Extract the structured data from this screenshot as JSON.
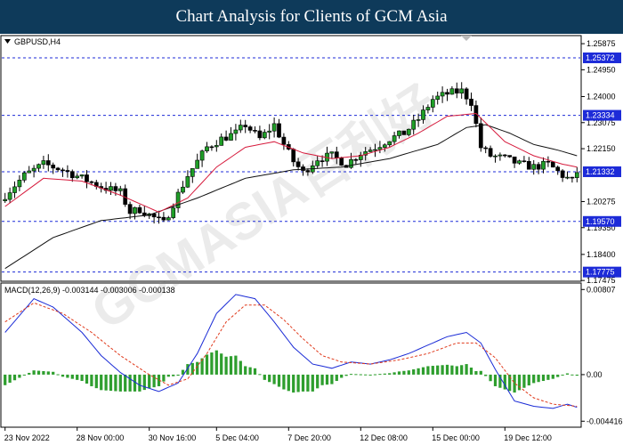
{
  "banner": {
    "title": "Chart Analysis for Clients of GCM Asia"
  },
  "watermark": "GCMASIA百利好",
  "chart_data": {
    "type": "candlestick",
    "symbol": "GBPUSD,H4",
    "x_tick_labels": [
      "23 Nov 2022",
      "28 Nov 00:00",
      "30 Nov 16:00",
      "5 Dec 04:00",
      "7 Dec 20:00",
      "12 Dec 08:00",
      "15 Dec 00:00",
      "19 Dec 12:00"
    ],
    "price_axis": {
      "ylim": [
        1.1748,
        1.2613
      ],
      "ticks": [
        1.25875,
        1.2495,
        1.24,
        1.23075,
        1.2215,
        1.20275,
        1.1935,
        1.184,
        1.17475
      ],
      "tick_labels": [
        "1.25875",
        "1.24950",
        "1.24000",
        "1.23075",
        "1.22150",
        "1.20275",
        "1.19350",
        "1.18400",
        "1.17475"
      ]
    },
    "levels": [
      {
        "value": 1.25372,
        "label": "1.25372"
      },
      {
        "value": 1.23334,
        "label": "1.23334"
      },
      {
        "value": 1.21332,
        "label": "1.21332"
      },
      {
        "value": 1.1957,
        "label": "1.19570"
      },
      {
        "value": 1.17775,
        "label": "1.17775"
      }
    ],
    "close_path": [
      [
        0,
        1.205
      ],
      [
        4,
        1.212
      ],
      [
        8,
        1.216
      ],
      [
        12,
        1.214
      ],
      [
        16,
        1.211
      ],
      [
        20,
        1.208
      ],
      [
        24,
        1.206
      ],
      [
        26,
        1.199
      ],
      [
        28,
        1.2
      ],
      [
        30,
        1.198
      ],
      [
        33,
        1.195
      ],
      [
        35,
        1.202
      ],
      [
        38,
        1.212
      ],
      [
        42,
        1.222
      ],
      [
        45,
        1.225
      ],
      [
        48,
        1.227
      ],
      [
        50,
        1.23
      ],
      [
        53,
        1.225
      ],
      [
        56,
        1.23
      ],
      [
        58,
        1.223
      ],
      [
        60,
        1.217
      ],
      [
        62,
        1.213
      ],
      [
        65,
        1.218
      ],
      [
        68,
        1.219
      ],
      [
        71,
        1.216
      ],
      [
        74,
        1.22
      ],
      [
        77,
        1.222
      ],
      [
        80,
        1.225
      ],
      [
        83,
        1.227
      ],
      [
        86,
        1.232
      ],
      [
        89,
        1.239
      ],
      [
        92,
        1.241
      ],
      [
        95,
        1.242
      ],
      [
        97,
        1.238
      ],
      [
        99,
        1.222
      ],
      [
        101,
        1.219
      ],
      [
        104,
        1.218
      ],
      [
        107,
        1.216
      ],
      [
        110,
        1.215
      ],
      [
        113,
        1.216
      ],
      [
        116,
        1.212
      ],
      [
        118,
        1.21
      ],
      [
        119,
        1.2133
      ]
    ],
    "ma_fast": [
      [
        0,
        1.201
      ],
      [
        8,
        1.211
      ],
      [
        16,
        1.21
      ],
      [
        24,
        1.205
      ],
      [
        32,
        1.199
      ],
      [
        38,
        1.204
      ],
      [
        44,
        1.215
      ],
      [
        50,
        1.222
      ],
      [
        56,
        1.224
      ],
      [
        62,
        1.22
      ],
      [
        68,
        1.218
      ],
      [
        74,
        1.219
      ],
      [
        80,
        1.222
      ],
      [
        86,
        1.227
      ],
      [
        92,
        1.233
      ],
      [
        98,
        1.234
      ],
      [
        104,
        1.224
      ],
      [
        110,
        1.219
      ],
      [
        116,
        1.216
      ],
      [
        119,
        1.215
      ]
    ],
    "ma_slow": [
      [
        0,
        1.179
      ],
      [
        10,
        1.19
      ],
      [
        20,
        1.196
      ],
      [
        30,
        1.198
      ],
      [
        40,
        1.204
      ],
      [
        50,
        1.211
      ],
      [
        60,
        1.214
      ],
      [
        70,
        1.215
      ],
      [
        80,
        1.218
      ],
      [
        90,
        1.223
      ],
      [
        96,
        1.229
      ],
      [
        100,
        1.23
      ],
      [
        105,
        1.227
      ],
      [
        110,
        1.223
      ],
      [
        115,
        1.221
      ],
      [
        119,
        1.219
      ]
    ],
    "macd": {
      "label": "MACD(12,26,9) -0.003144 -0.003006 -0.000138",
      "ylim": [
        -0.0049,
        0.0086
      ],
      "ticks": [
        0.00807,
        0.0,
        -0.004416
      ],
      "tick_labels": [
        "0.00807",
        "0.00",
        "-0.004416"
      ],
      "macd_line": [
        [
          0,
          0.004
        ],
        [
          6,
          0.0072
        ],
        [
          10,
          0.0064
        ],
        [
          16,
          0.004
        ],
        [
          20,
          0.0018
        ],
        [
          24,
          0.0002
        ],
        [
          28,
          -0.001
        ],
        [
          32,
          -0.0016
        ],
        [
          36,
          -0.0008
        ],
        [
          40,
          0.002
        ],
        [
          44,
          0.0058
        ],
        [
          48,
          0.0076
        ],
        [
          52,
          0.0072
        ],
        [
          56,
          0.005
        ],
        [
          60,
          0.0026
        ],
        [
          64,
          0.001
        ],
        [
          68,
          0.0006
        ],
        [
          72,
          0.0012
        ],
        [
          76,
          0.001
        ],
        [
          80,
          0.0014
        ],
        [
          84,
          0.002
        ],
        [
          88,
          0.0028
        ],
        [
          92,
          0.0036
        ],
        [
          96,
          0.004
        ],
        [
          99,
          0.003
        ],
        [
          102,
          0.0005
        ],
        [
          106,
          -0.0025
        ],
        [
          110,
          -0.003
        ],
        [
          114,
          -0.0032
        ],
        [
          117,
          -0.0028
        ],
        [
          119,
          -0.0031
        ]
      ],
      "signal_line": [
        [
          0,
          0.005
        ],
        [
          6,
          0.0068
        ],
        [
          12,
          0.0058
        ],
        [
          18,
          0.004
        ],
        [
          24,
          0.0018
        ],
        [
          30,
          0.0
        ],
        [
          34,
          -0.001
        ],
        [
          38,
          -0.0004
        ],
        [
          42,
          0.002
        ],
        [
          46,
          0.005
        ],
        [
          50,
          0.0066
        ],
        [
          54,
          0.0066
        ],
        [
          58,
          0.0052
        ],
        [
          62,
          0.0034
        ],
        [
          66,
          0.0018
        ],
        [
          70,
          0.0012
        ],
        [
          76,
          0.001
        ],
        [
          82,
          0.0014
        ],
        [
          88,
          0.002
        ],
        [
          94,
          0.003
        ],
        [
          98,
          0.003
        ],
        [
          102,
          0.0016
        ],
        [
          106,
          -0.0008
        ],
        [
          110,
          -0.0022
        ],
        [
          114,
          -0.0028
        ],
        [
          119,
          -0.003
        ]
      ]
    }
  }
}
